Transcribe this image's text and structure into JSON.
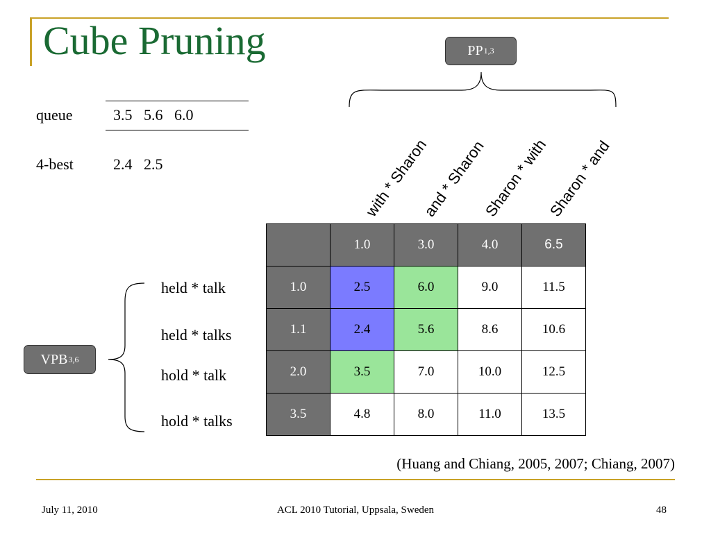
{
  "slide": {
    "title": "Cube Pruning",
    "pp_node": {
      "label": "PP",
      "sub": "1,3"
    },
    "vpb_node": {
      "label": "VPB",
      "sub": "3,6"
    },
    "queue": {
      "label": "queue",
      "values": "3.5   5.6   6.0"
    },
    "best": {
      "label": "4-best",
      "values": "2.4   2.5"
    },
    "column_labels": [
      "with * Sharon",
      "and * Sharon",
      "Sharon *  with",
      "Sharon *   and"
    ],
    "row_labels": [
      "held * talk",
      "held * talks",
      "hold * talk",
      "hold * talks"
    ],
    "grid": {
      "corner": "",
      "col_headers": [
        "1.0",
        "3.0",
        "4.0",
        "6.5"
      ],
      "rows": [
        {
          "header": "1.0",
          "cells": [
            "2.5",
            "6.0",
            "9.0",
            "11.5"
          ]
        },
        {
          "header": "1.1",
          "cells": [
            "2.4",
            "5.6",
            "8.6",
            "10.6"
          ]
        },
        {
          "header": "2.0",
          "cells": [
            "3.5",
            "7.0",
            "10.0",
            "12.5"
          ]
        },
        {
          "header": "3.5",
          "cells": [
            "4.8",
            "8.0",
            "11.0",
            "13.5"
          ]
        }
      ]
    },
    "citation": "(Huang and Chiang, 2005, 2007; Chiang, 2007)",
    "footer": {
      "date": "July 11, 2010",
      "venue": "ACL 2010 Tutorial, Uppsala, Sweden",
      "page": "48"
    },
    "colors": {
      "title": "#1a6a33",
      "frame": "#c9a227",
      "header_gray": "#707070",
      "blue": "#7b7bff",
      "green": "#9ae59a"
    }
  }
}
